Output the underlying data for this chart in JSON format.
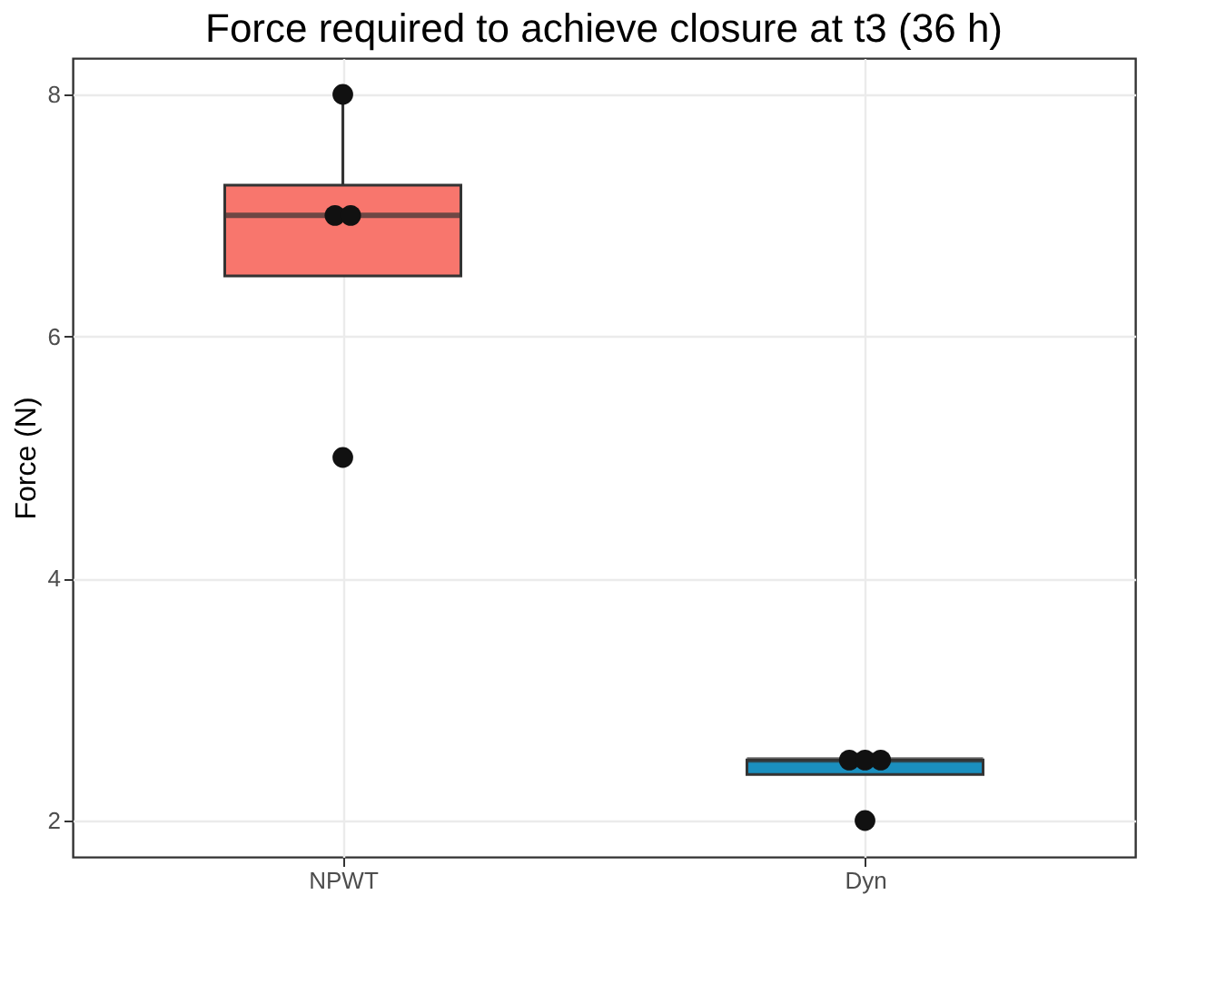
{
  "chart_data": {
    "type": "box",
    "title": "Force required to achieve closure at t3 (36 h)",
    "ylabel": "Force (N)",
    "categories": [
      "NPWT",
      "Dyn"
    ],
    "colors": [
      "#f8766d",
      "#1a8fbf"
    ],
    "boxes": [
      {
        "low": 6.5,
        "q1": 6.5,
        "median": 7,
        "q3": 7.25,
        "high": 8
      },
      {
        "low": 2.38,
        "q1": 2.38,
        "median": 2.5,
        "q3": 2.5,
        "high": 2.5
      }
    ],
    "series": [
      {
        "type": "scatter",
        "color": "#111111",
        "x": [
          "NPWT",
          "NPWT",
          "NPWT",
          "NPWT"
        ],
        "values": [
          8,
          7,
          7,
          5
        ]
      },
      {
        "type": "scatter",
        "color": "#111111",
        "x": [
          "Dyn",
          "Dyn",
          "Dyn",
          "Dyn"
        ],
        "values": [
          2.5,
          2.5,
          2.5,
          2
        ]
      }
    ],
    "ylim": [
      1.7,
      8.3
    ],
    "yticks": [
      2,
      4,
      6,
      8
    ],
    "grid": true
  }
}
